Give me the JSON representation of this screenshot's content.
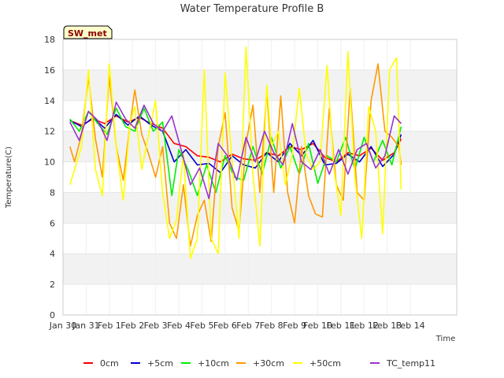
{
  "chart_data": {
    "type": "line",
    "title": "Water Temperature Profile B",
    "xlabel": "Time",
    "ylabel": "Temperature(C)",
    "site_label": "SW_met",
    "ylim": [
      0,
      18
    ],
    "yticks": [
      "0",
      "2",
      "4",
      "6",
      "8",
      "10",
      "12",
      "14",
      "16",
      "18"
    ],
    "xlim": [
      0,
      17
    ],
    "xticks": [
      "Jan 30",
      "Jan 31",
      "Feb 1",
      "Feb 2",
      "Feb 3",
      "Feb 4",
      "Feb 5",
      "Feb 6",
      "Feb 7",
      "Feb 8",
      "Feb 9",
      "Feb 10",
      "Feb 11",
      "Feb 12",
      "Feb 13",
      "Feb 14"
    ],
    "xtick_days": [
      0,
      1,
      2,
      3,
      4,
      5,
      6,
      7,
      8,
      9,
      10,
      11,
      12,
      13,
      14,
      15
    ],
    "grid": true,
    "legend_position": "bottom",
    "series": [
      {
        "name": "0cm",
        "color": "#ff0000",
        "x": [
          0.3,
          0.8,
          1.3,
          1.8,
          2.3,
          2.8,
          3.3,
          3.8,
          4.3,
          4.8,
          5.3,
          5.8,
          6.3,
          6.8,
          7.3,
          7.8,
          8.3,
          8.8,
          9.3,
          9.8,
          10.3,
          10.8,
          11.3,
          11.8,
          12.3,
          12.8,
          13.3,
          13.8,
          14.3,
          14.6
        ],
        "y": [
          12.7,
          12.4,
          12.8,
          12.5,
          13.0,
          12.6,
          12.9,
          12.5,
          12.2,
          11.2,
          11.0,
          10.4,
          10.3,
          10.0,
          10.5,
          10.2,
          10.1,
          10.6,
          10.4,
          11.0,
          10.8,
          11.2,
          10.3,
          10.0,
          10.6,
          10.4,
          10.9,
          10.1,
          10.6,
          11.5
        ]
      },
      {
        "name": "+5cm",
        "color": "#0000cc",
        "x": [
          0.3,
          0.8,
          1.3,
          1.8,
          2.3,
          2.8,
          3.3,
          3.8,
          4.3,
          4.8,
          5.3,
          5.8,
          6.3,
          6.8,
          7.3,
          7.8,
          8.3,
          8.8,
          9.3,
          9.8,
          10.3,
          10.8,
          11.3,
          11.8,
          12.3,
          12.8,
          13.3,
          13.8,
          14.3,
          14.6
        ],
        "y": [
          12.7,
          12.3,
          12.9,
          12.2,
          13.1,
          12.4,
          13.0,
          12.4,
          12.0,
          10.0,
          10.8,
          9.8,
          9.9,
          9.3,
          10.4,
          9.8,
          9.6,
          10.6,
          10.0,
          11.2,
          10.4,
          11.4,
          9.8,
          9.9,
          10.5,
          10.0,
          11.0,
          9.7,
          10.5,
          11.8
        ]
      },
      {
        "name": "+10cm",
        "color": "#00ee00",
        "x": [
          0.3,
          0.7,
          1.1,
          1.5,
          1.9,
          2.3,
          2.7,
          3.1,
          3.5,
          3.9,
          4.3,
          4.7,
          5.0,
          5.4,
          5.8,
          6.2,
          6.6,
          7.0,
          7.4,
          7.8,
          8.2,
          8.6,
          9.0,
          9.4,
          9.8,
          10.2,
          10.6,
          11.0,
          11.4,
          11.8,
          12.2,
          12.6,
          13.0,
          13.4,
          13.8,
          14.2,
          14.6
        ],
        "y": [
          12.8,
          12.0,
          13.3,
          12.5,
          11.8,
          13.5,
          12.3,
          12.0,
          13.5,
          12.0,
          12.6,
          7.8,
          10.8,
          9.5,
          7.8,
          9.8,
          8.0,
          10.4,
          9.0,
          8.8,
          11.0,
          9.2,
          11.6,
          9.6,
          11.0,
          9.2,
          11.2,
          8.6,
          10.4,
          10.0,
          11.6,
          9.5,
          11.6,
          10.0,
          11.4,
          9.8,
          12.3
        ]
      },
      {
        "name": "+30cm",
        "color": "#ff9900",
        "x": [
          0.3,
          0.5,
          0.8,
          1.1,
          1.4,
          1.7,
          2.0,
          2.3,
          2.6,
          2.9,
          3.1,
          3.4,
          3.7,
          4.0,
          4.3,
          4.6,
          4.9,
          5.2,
          5.5,
          5.8,
          6.1,
          6.4,
          6.7,
          7.0,
          7.3,
          7.6,
          7.9,
          8.2,
          8.5,
          8.8,
          9.1,
          9.4,
          9.7,
          10.0,
          10.3,
          10.6,
          10.9,
          11.2,
          11.5,
          11.8,
          12.1,
          12.4,
          12.7,
          13.0,
          13.3,
          13.6,
          13.9,
          14.2,
          14.5,
          14.6
        ],
        "y": [
          11.0,
          10.0,
          11.8,
          15.5,
          11.5,
          9.0,
          15.6,
          11.0,
          8.8,
          12.5,
          14.7,
          11.8,
          10.5,
          9.0,
          11.0,
          6.0,
          5.0,
          8.5,
          4.5,
          6.5,
          7.5,
          4.8,
          11.0,
          13.2,
          7.0,
          5.5,
          11.2,
          13.7,
          8.0,
          14.6,
          8.0,
          14.3,
          8.0,
          6.0,
          11.0,
          7.8,
          6.6,
          6.4,
          13.5,
          8.5,
          7.5,
          14.8,
          8.0,
          7.5,
          14.0,
          16.4,
          12.0,
          11.6,
          11.0,
          9.8
        ]
      },
      {
        "name": "+50cm",
        "color": "#ffff00",
        "x": [
          0.3,
          0.5,
          0.8,
          1.1,
          1.4,
          1.7,
          2.0,
          2.3,
          2.6,
          2.9,
          3.1,
          3.4,
          3.7,
          4.0,
          4.3,
          4.6,
          4.9,
          5.2,
          5.5,
          5.8,
          6.1,
          6.4,
          6.7,
          7.0,
          7.3,
          7.6,
          7.9,
          8.2,
          8.5,
          8.8,
          9.0,
          9.3,
          9.6,
          9.9,
          10.2,
          10.5,
          10.8,
          11.1,
          11.4,
          11.7,
          12.0,
          12.3,
          12.6,
          12.9,
          13.2,
          13.5,
          13.8,
          14.1,
          14.4,
          14.6
        ],
        "y": [
          8.5,
          9.5,
          11.0,
          16.0,
          9.5,
          7.8,
          16.4,
          11.0,
          7.5,
          12.6,
          13.6,
          9.5,
          11.8,
          14.0,
          8.0,
          5.0,
          6.2,
          10.5,
          3.7,
          5.0,
          16.0,
          5.0,
          4.0,
          15.8,
          10.0,
          5.0,
          17.5,
          9.2,
          4.5,
          15.0,
          11.0,
          12.0,
          8.5,
          10.5,
          14.8,
          10.5,
          9.5,
          10.0,
          16.3,
          9.5,
          6.5,
          17.2,
          9.0,
          5.0,
          13.6,
          12.0,
          5.3,
          16.0,
          16.8,
          8.2
        ]
      },
      {
        "name": "TC_temp11",
        "color": "#9933cc",
        "x": [
          0.3,
          0.7,
          1.1,
          1.5,
          1.9,
          2.3,
          2.7,
          3.1,
          3.5,
          3.9,
          4.3,
          4.7,
          5.1,
          5.5,
          5.9,
          6.3,
          6.7,
          7.1,
          7.5,
          7.9,
          8.3,
          8.7,
          9.1,
          9.5,
          9.9,
          10.3,
          10.7,
          11.1,
          11.5,
          11.9,
          12.3,
          12.7,
          13.1,
          13.5,
          13.9,
          14.3,
          14.6
        ],
        "y": [
          12.6,
          11.4,
          13.3,
          12.7,
          11.4,
          13.9,
          12.8,
          12.2,
          13.7,
          12.5,
          12.0,
          13.0,
          10.8,
          8.5,
          9.6,
          7.6,
          11.2,
          10.4,
          8.8,
          11.6,
          10.0,
          12.0,
          10.6,
          9.8,
          12.5,
          10.0,
          9.5,
          10.8,
          9.2,
          10.8,
          9.2,
          10.8,
          11.2,
          9.6,
          10.4,
          13.0,
          12.5
        ]
      }
    ]
  }
}
